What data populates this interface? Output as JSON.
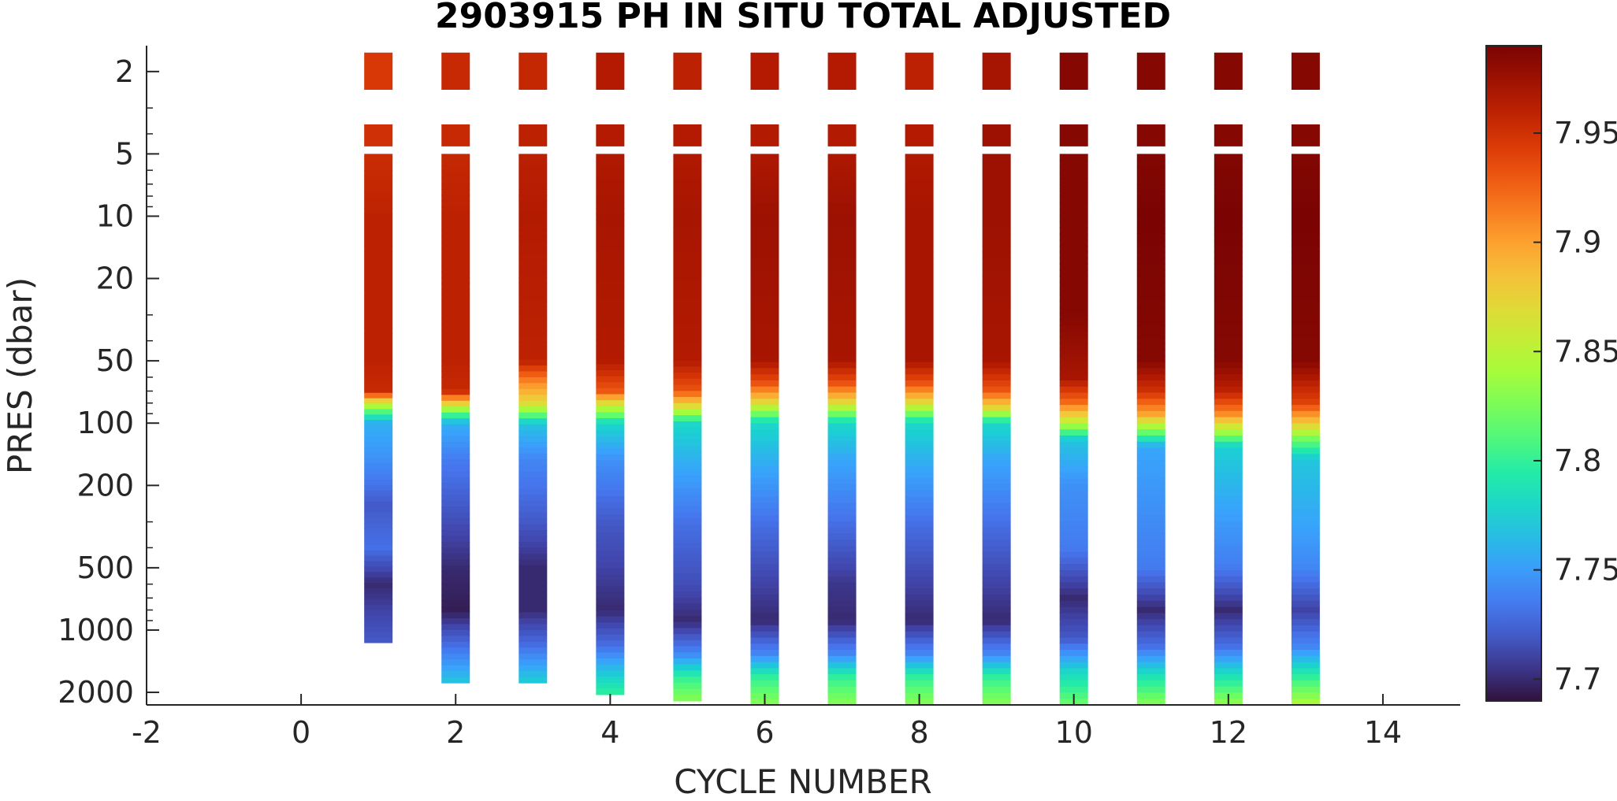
{
  "chart_data": {
    "type": "heatmap",
    "title": "2903915  PH IN SITU TOTAL ADJUSTED",
    "xlabel": "CYCLE NUMBER",
    "ylabel": "PRES (dbar)",
    "xlim": [
      -2,
      15
    ],
    "x_ticks": [
      -2,
      0,
      2,
      4,
      6,
      8,
      10,
      12,
      14
    ],
    "y_scale": "log",
    "ylim": [
      1.5,
      2300
    ],
    "y_ticks": [
      2,
      5,
      10,
      20,
      50,
      100,
      200,
      500,
      1000,
      2000
    ],
    "colorbar": {
      "colormap": "turbo",
      "range": [
        7.69,
        7.99
      ],
      "ticks": [
        "7.7",
        "7.75",
        "7.8",
        "7.85",
        "7.9",
        "7.95"
      ]
    },
    "cycles": [
      {
        "cycle": 1,
        "max_pres": 1150,
        "depth_samples": [
          [
            1.8,
            7.945
          ],
          [
            4,
            7.95
          ],
          [
            10,
            7.96
          ],
          [
            50,
            7.96
          ],
          [
            70,
            7.955
          ],
          [
            80,
            7.86
          ],
          [
            90,
            7.8
          ],
          [
            100,
            7.76
          ],
          [
            150,
            7.745
          ],
          [
            250,
            7.72
          ],
          [
            400,
            7.73
          ],
          [
            600,
            7.7
          ],
          [
            800,
            7.71
          ],
          [
            1150,
            7.72
          ]
        ]
      },
      {
        "cycle": 2,
        "max_pres": 1800,
        "depth_samples": [
          [
            1.8,
            7.955
          ],
          [
            4,
            7.955
          ],
          [
            10,
            7.96
          ],
          [
            50,
            7.96
          ],
          [
            70,
            7.955
          ],
          [
            80,
            7.88
          ],
          [
            90,
            7.81
          ],
          [
            100,
            7.76
          ],
          [
            150,
            7.735
          ],
          [
            300,
            7.715
          ],
          [
            500,
            7.7
          ],
          [
            800,
            7.695
          ],
          [
            1200,
            7.73
          ],
          [
            1800,
            7.77
          ]
        ]
      },
      {
        "cycle": 3,
        "max_pres": 1800,
        "depth_samples": [
          [
            1.8,
            7.955
          ],
          [
            4,
            7.96
          ],
          [
            10,
            7.965
          ],
          [
            50,
            7.96
          ],
          [
            60,
            7.92
          ],
          [
            80,
            7.87
          ],
          [
            90,
            7.82
          ],
          [
            100,
            7.77
          ],
          [
            150,
            7.74
          ],
          [
            300,
            7.72
          ],
          [
            500,
            7.7
          ],
          [
            800,
            7.7
          ],
          [
            1200,
            7.73
          ],
          [
            1800,
            7.775
          ]
        ]
      },
      {
        "cycle": 4,
        "max_pres": 2050,
        "depth_samples": [
          [
            1.8,
            7.965
          ],
          [
            4,
            7.965
          ],
          [
            10,
            7.97
          ],
          [
            50,
            7.965
          ],
          [
            70,
            7.93
          ],
          [
            80,
            7.87
          ],
          [
            100,
            7.78
          ],
          [
            150,
            7.745
          ],
          [
            300,
            7.72
          ],
          [
            500,
            7.71
          ],
          [
            800,
            7.7
          ],
          [
            1200,
            7.73
          ],
          [
            1600,
            7.77
          ],
          [
            2050,
            7.8
          ]
        ]
      },
      {
        "cycle": 5,
        "max_pres": 2200,
        "depth_samples": [
          [
            1.8,
            7.96
          ],
          [
            4,
            7.965
          ],
          [
            10,
            7.97
          ],
          [
            50,
            7.965
          ],
          [
            70,
            7.93
          ],
          [
            85,
            7.86
          ],
          [
            100,
            7.78
          ],
          [
            150,
            7.76
          ],
          [
            300,
            7.73
          ],
          [
            600,
            7.715
          ],
          [
            900,
            7.7
          ],
          [
            1300,
            7.74
          ],
          [
            1700,
            7.8
          ],
          [
            2200,
            7.83
          ]
        ]
      },
      {
        "cycle": 6,
        "max_pres": 2300,
        "depth_samples": [
          [
            1.8,
            7.965
          ],
          [
            4,
            7.965
          ],
          [
            10,
            7.975
          ],
          [
            50,
            7.97
          ],
          [
            65,
            7.93
          ],
          [
            80,
            7.87
          ],
          [
            100,
            7.78
          ],
          [
            150,
            7.76
          ],
          [
            300,
            7.73
          ],
          [
            600,
            7.71
          ],
          [
            900,
            7.7
          ],
          [
            1300,
            7.74
          ],
          [
            1700,
            7.8
          ],
          [
            2300,
            7.83
          ]
        ]
      },
      {
        "cycle": 7,
        "max_pres": 2300,
        "depth_samples": [
          [
            1.8,
            7.965
          ],
          [
            4,
            7.965
          ],
          [
            10,
            7.975
          ],
          [
            50,
            7.97
          ],
          [
            65,
            7.93
          ],
          [
            80,
            7.87
          ],
          [
            100,
            7.78
          ],
          [
            150,
            7.755
          ],
          [
            300,
            7.73
          ],
          [
            600,
            7.705
          ],
          [
            900,
            7.7
          ],
          [
            1300,
            7.74
          ],
          [
            1700,
            7.8
          ],
          [
            2300,
            7.83
          ]
        ]
      },
      {
        "cycle": 8,
        "max_pres": 2300,
        "depth_samples": [
          [
            1.8,
            7.96
          ],
          [
            4,
            7.965
          ],
          [
            10,
            7.97
          ],
          [
            50,
            7.97
          ],
          [
            65,
            7.93
          ],
          [
            80,
            7.87
          ],
          [
            100,
            7.78
          ],
          [
            150,
            7.76
          ],
          [
            300,
            7.73
          ],
          [
            600,
            7.71
          ],
          [
            900,
            7.7
          ],
          [
            1300,
            7.74
          ],
          [
            1700,
            7.8
          ],
          [
            2300,
            7.83
          ]
        ]
      },
      {
        "cycle": 9,
        "max_pres": 2300,
        "depth_samples": [
          [
            1.8,
            7.97
          ],
          [
            4,
            7.975
          ],
          [
            10,
            7.975
          ],
          [
            50,
            7.97
          ],
          [
            70,
            7.93
          ],
          [
            85,
            7.87
          ],
          [
            100,
            7.78
          ],
          [
            150,
            7.755
          ],
          [
            300,
            7.73
          ],
          [
            600,
            7.71
          ],
          [
            900,
            7.7
          ],
          [
            1300,
            7.74
          ],
          [
            1700,
            7.8
          ],
          [
            2300,
            7.83
          ]
        ]
      },
      {
        "cycle": 10,
        "max_pres": 2300,
        "depth_samples": [
          [
            1.8,
            7.985
          ],
          [
            4,
            7.985
          ],
          [
            10,
            7.985
          ],
          [
            30,
            7.985
          ],
          [
            60,
            7.97
          ],
          [
            80,
            7.92
          ],
          [
            100,
            7.85
          ],
          [
            120,
            7.77
          ],
          [
            200,
            7.745
          ],
          [
            400,
            7.735
          ],
          [
            700,
            7.7
          ],
          [
            1100,
            7.72
          ],
          [
            1600,
            7.78
          ],
          [
            2300,
            7.82
          ]
        ]
      },
      {
        "cycle": 11,
        "max_pres": 2300,
        "depth_samples": [
          [
            1.8,
            7.985
          ],
          [
            4,
            7.985
          ],
          [
            10,
            7.99
          ],
          [
            50,
            7.985
          ],
          [
            70,
            7.95
          ],
          [
            90,
            7.9
          ],
          [
            110,
            7.82
          ],
          [
            130,
            7.755
          ],
          [
            250,
            7.745
          ],
          [
            500,
            7.735
          ],
          [
            800,
            7.7
          ],
          [
            1200,
            7.73
          ],
          [
            1700,
            7.79
          ],
          [
            2300,
            7.83
          ]
        ]
      },
      {
        "cycle": 12,
        "max_pres": 2300,
        "depth_samples": [
          [
            1.8,
            7.985
          ],
          [
            4,
            7.985
          ],
          [
            10,
            7.99
          ],
          [
            50,
            7.985
          ],
          [
            70,
            7.96
          ],
          [
            90,
            7.91
          ],
          [
            110,
            7.84
          ],
          [
            130,
            7.775
          ],
          [
            250,
            7.755
          ],
          [
            500,
            7.735
          ],
          [
            800,
            7.7
          ],
          [
            1200,
            7.73
          ],
          [
            1700,
            7.79
          ],
          [
            2300,
            7.835
          ]
        ]
      },
      {
        "cycle": 13,
        "max_pres": 2300,
        "depth_samples": [
          [
            1.8,
            7.985
          ],
          [
            4,
            7.985
          ],
          [
            10,
            7.99
          ],
          [
            50,
            7.985
          ],
          [
            80,
            7.94
          ],
          [
            100,
            7.88
          ],
          [
            120,
            7.82
          ],
          [
            150,
            7.77
          ],
          [
            300,
            7.755
          ],
          [
            500,
            7.74
          ],
          [
            800,
            7.71
          ],
          [
            1200,
            7.74
          ],
          [
            1700,
            7.8
          ],
          [
            2300,
            7.845
          ]
        ]
      }
    ]
  }
}
